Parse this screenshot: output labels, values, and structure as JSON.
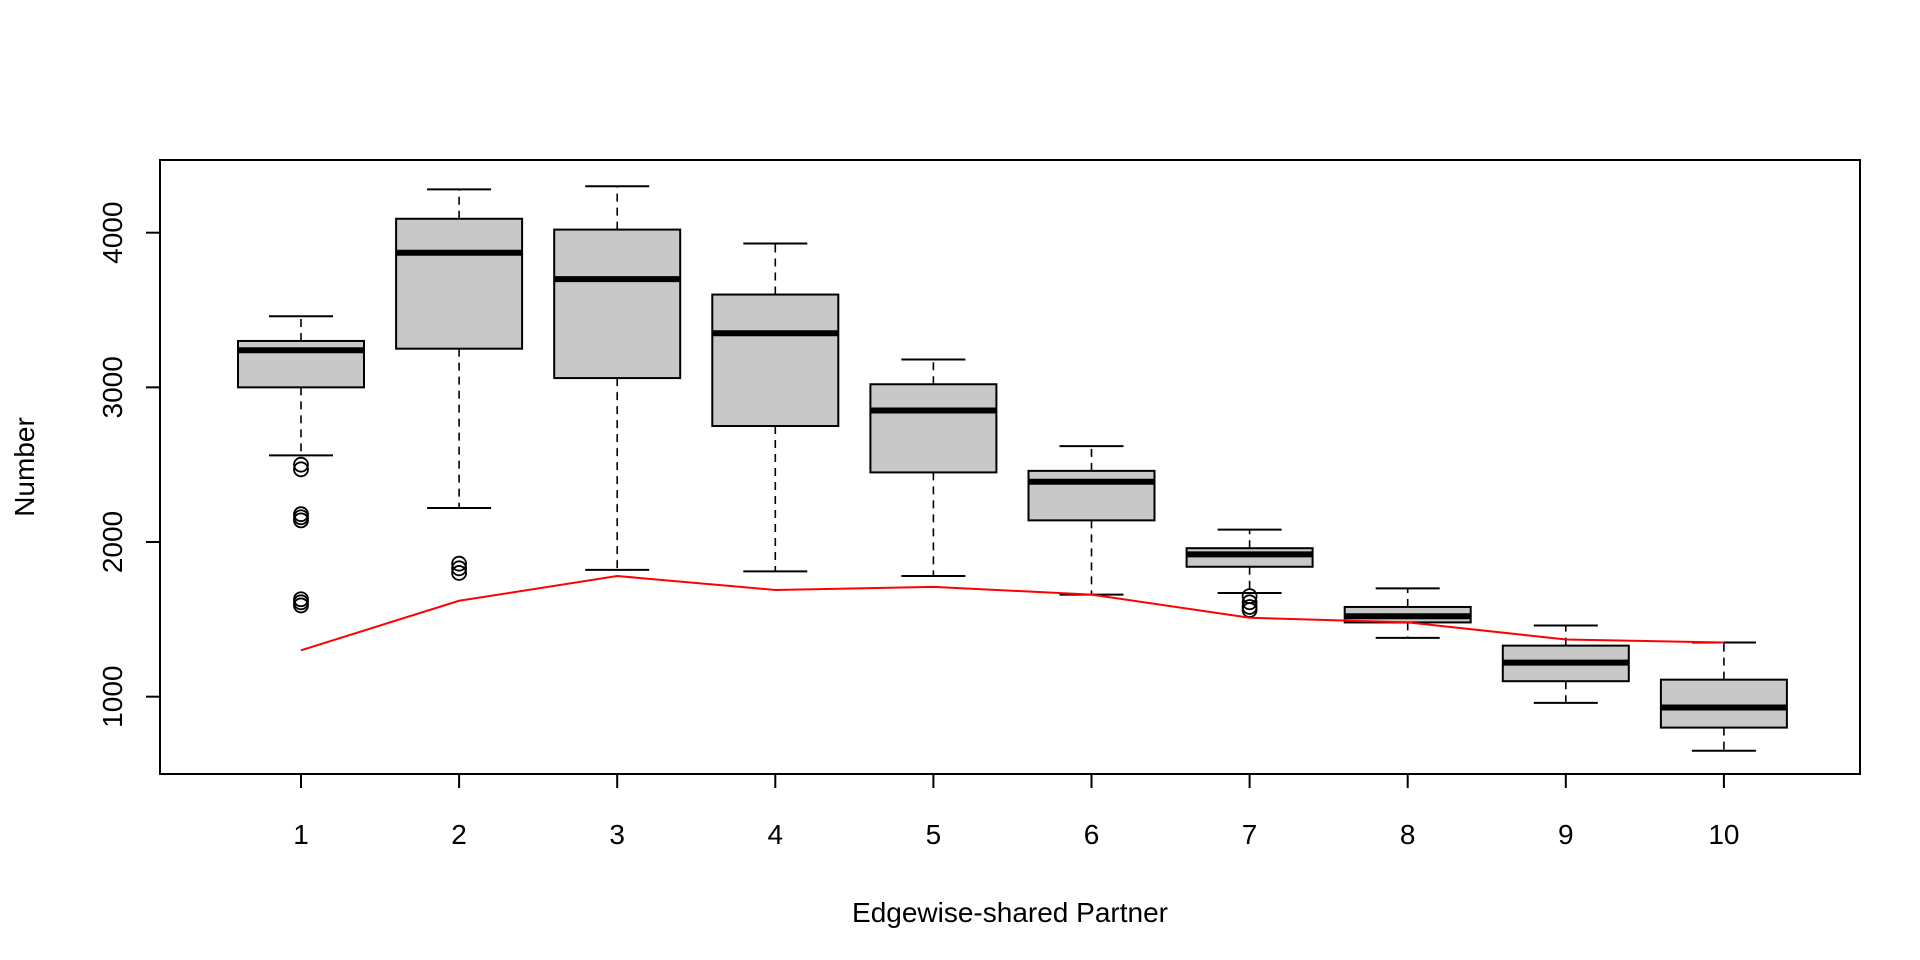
{
  "chart_data": {
    "type": "boxplot",
    "title": "",
    "xlabel": "Edgewise-shared Partner",
    "ylabel": "Number",
    "ylim": [
      500,
      4470
    ],
    "yticks": [
      1000,
      2000,
      3000,
      4000
    ],
    "categories": [
      "1",
      "2",
      "3",
      "4",
      "5",
      "6",
      "7",
      "8",
      "9",
      "10"
    ],
    "boxes": [
      {
        "category": "1",
        "whisker_low": 2560,
        "q1": 3000,
        "median": 3240,
        "q3": 3300,
        "whisker_high": 3460,
        "outliers": [
          2500,
          2470,
          2180,
          2160,
          2140,
          1630,
          1610,
          1590
        ]
      },
      {
        "category": "2",
        "whisker_low": 2220,
        "q1": 3250,
        "median": 3870,
        "q3": 4090,
        "whisker_high": 4280,
        "outliers": [
          1860,
          1830,
          1800
        ]
      },
      {
        "category": "3",
        "whisker_low": 1820,
        "q1": 3060,
        "median": 3700,
        "q3": 4020,
        "whisker_high": 4300,
        "outliers": []
      },
      {
        "category": "4",
        "whisker_low": 1810,
        "q1": 2750,
        "median": 3350,
        "q3": 3600,
        "whisker_high": 3930,
        "outliers": []
      },
      {
        "category": "5",
        "whisker_low": 1780,
        "q1": 2450,
        "median": 2850,
        "q3": 3020,
        "whisker_high": 3180,
        "outliers": []
      },
      {
        "category": "6",
        "whisker_low": 1660,
        "q1": 2140,
        "median": 2390,
        "q3": 2460,
        "whisker_high": 2620,
        "outliers": []
      },
      {
        "category": "7",
        "whisker_low": 1670,
        "q1": 1840,
        "median": 1920,
        "q3": 1960,
        "whisker_high": 2080,
        "outliers": [
          1650,
          1610,
          1580,
          1560
        ]
      },
      {
        "category": "8",
        "whisker_low": 1380,
        "q1": 1480,
        "median": 1520,
        "q3": 1580,
        "whisker_high": 1700,
        "outliers": []
      },
      {
        "category": "9",
        "whisker_low": 960,
        "q1": 1100,
        "median": 1220,
        "q3": 1330,
        "whisker_high": 1460,
        "outliers": []
      },
      {
        "category": "10",
        "whisker_low": 650,
        "q1": 800,
        "median": 930,
        "q3": 1110,
        "whisker_high": 1350,
        "outliers": []
      }
    ],
    "line": {
      "color": "#ff0000",
      "values": [
        1300,
        1620,
        1780,
        1690,
        1710,
        1660,
        1510,
        1480,
        1370,
        1350
      ]
    },
    "box_fill": "#c8c8c8",
    "grid": false
  }
}
